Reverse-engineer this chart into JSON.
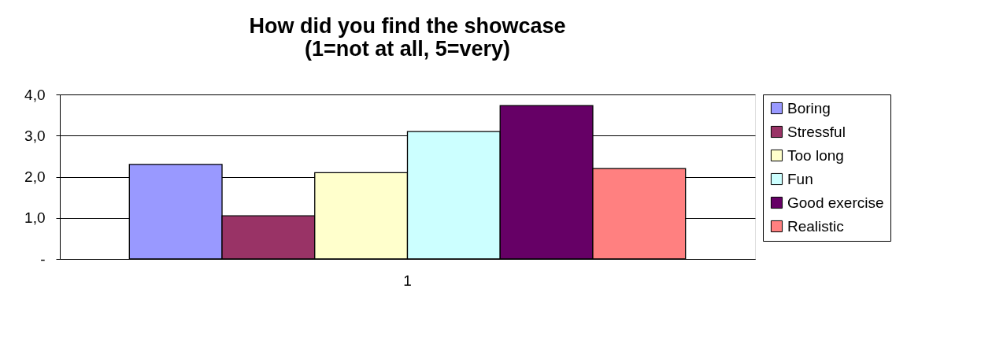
{
  "chart_data": {
    "type": "bar",
    "title": "How did you find the showcase\n(1=not at all, 5=very)",
    "categories": [
      "1"
    ],
    "series": [
      {
        "name": "Boring",
        "color": "#9999ff",
        "values": [
          2.3
        ]
      },
      {
        "name": "Stressful",
        "color": "#993366",
        "values": [
          1.05
        ]
      },
      {
        "name": "Too long",
        "color": "#ffffcc",
        "values": [
          2.1
        ]
      },
      {
        "name": "Fun",
        "color": "#ccffff",
        "values": [
          3.1
        ]
      },
      {
        "name": "Good exercise",
        "color": "#660066",
        "values": [
          3.73
        ]
      },
      {
        "name": "Realistic",
        "color": "#ff8080",
        "values": [
          2.2
        ]
      }
    ],
    "ylim": [
      0,
      4
    ],
    "yticks": [
      {
        "value": 0,
        "label": "-"
      },
      {
        "value": 1,
        "label": "1,0"
      },
      {
        "value": 2,
        "label": "2,0"
      },
      {
        "value": 3,
        "label": "3,0"
      },
      {
        "value": 4,
        "label": "4,0"
      }
    ],
    "grid": "y",
    "legend": "right"
  }
}
